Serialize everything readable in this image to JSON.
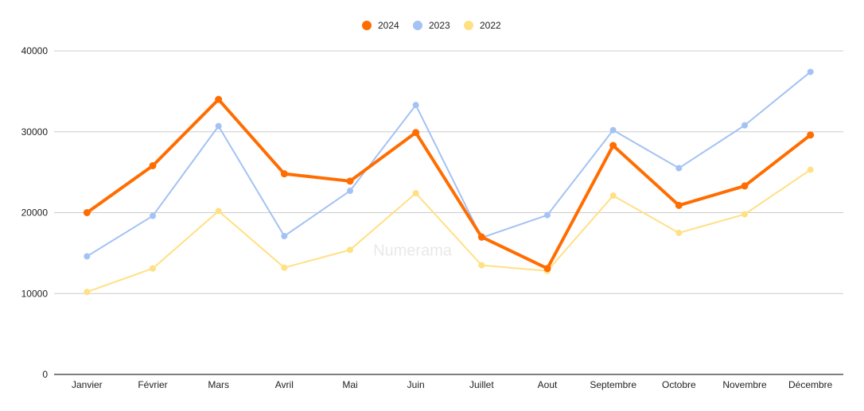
{
  "watermark": "Numerama",
  "chart_data": {
    "type": "line",
    "title": "",
    "xlabel": "",
    "ylabel": "",
    "categories": [
      "Janvier",
      "Février",
      "Mars",
      "Avril",
      "Mai",
      "Juin",
      "Juillet",
      "Aout",
      "Septembre",
      "Octobre",
      "Novembre",
      "Décembre"
    ],
    "yticks": [
      0,
      10000,
      20000,
      30000,
      40000
    ],
    "ylim": [
      0,
      40000
    ],
    "grid": true,
    "legend_position": "top-center",
    "series": [
      {
        "name": "2024",
        "color": "#ff6d01",
        "values": [
          20000,
          25800,
          34000,
          24800,
          23900,
          29900,
          17000,
          13100,
          28300,
          20900,
          23300,
          29600
        ]
      },
      {
        "name": "2023",
        "color": "#a4c2f4",
        "values": [
          14600,
          19600,
          30700,
          17100,
          22700,
          33300,
          16900,
          19700,
          30200,
          25500,
          30800,
          37400
        ]
      },
      {
        "name": "2022",
        "color": "#ffe083",
        "values": [
          10200,
          13100,
          20200,
          13200,
          15400,
          22400,
          13500,
          12800,
          22100,
          17500,
          19800,
          25300
        ]
      }
    ]
  }
}
